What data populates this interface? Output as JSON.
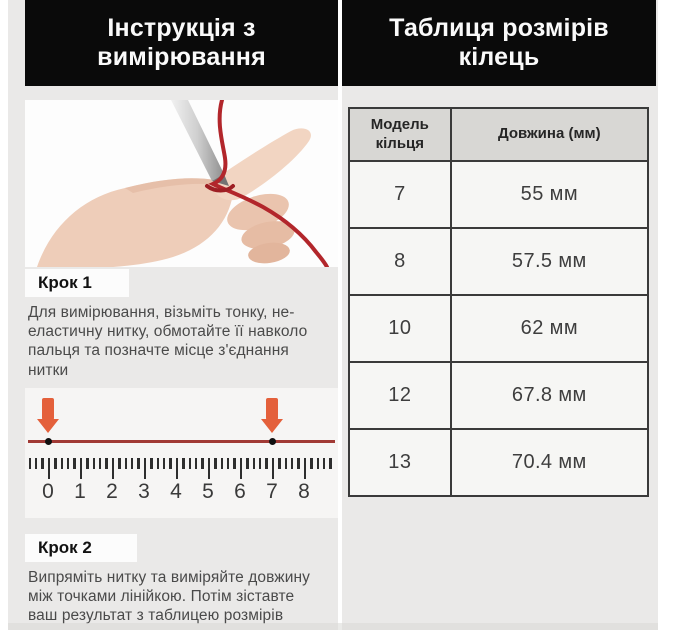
{
  "left_panel": {
    "title": "Інструкція з\nвимірювання",
    "step1": {
      "label": "Крок 1",
      "text": "Для вимірювання, візьміть тонку, не-\nеластичну нитку, обмотайте її навколо\nпальця та позначте місце з'єднання\nнитки"
    },
    "step2": {
      "label": "Крок 2",
      "text": "Випряміть нитку та виміряйте довжину\nміж точками лінійкою. Потім зіставте\nваш результат з таблицею розмірів"
    },
    "ruler": {
      "numbers": [
        "0",
        "1",
        "2",
        "3",
        "4",
        "5",
        "6",
        "7",
        "8"
      ],
      "marked_values": [
        0,
        7
      ]
    }
  },
  "right_panel": {
    "title": "Таблиця розмірів\nкілець",
    "table": {
      "headers": [
        "Модель\nкільця",
        "Довжина (мм)"
      ],
      "rows": [
        [
          "7",
          "55 мм"
        ],
        [
          "8",
          "57.5 мм"
        ],
        [
          "10",
          "62 мм"
        ],
        [
          "12",
          "67.8 мм"
        ],
        [
          "13",
          "70.4 мм"
        ]
      ]
    }
  },
  "colors": {
    "header_bg": "#0a0a0a",
    "panel_bg": "#eae9e8",
    "arrow_accent": "#e4603b",
    "thread_red": "#a13a35",
    "table_header_bg": "#d8d7d4",
    "table_border": "#3a3a3a"
  },
  "icons": {
    "down_arrow": "marker-down-arrow-icon",
    "hand": "hand-with-thread-illustration"
  }
}
